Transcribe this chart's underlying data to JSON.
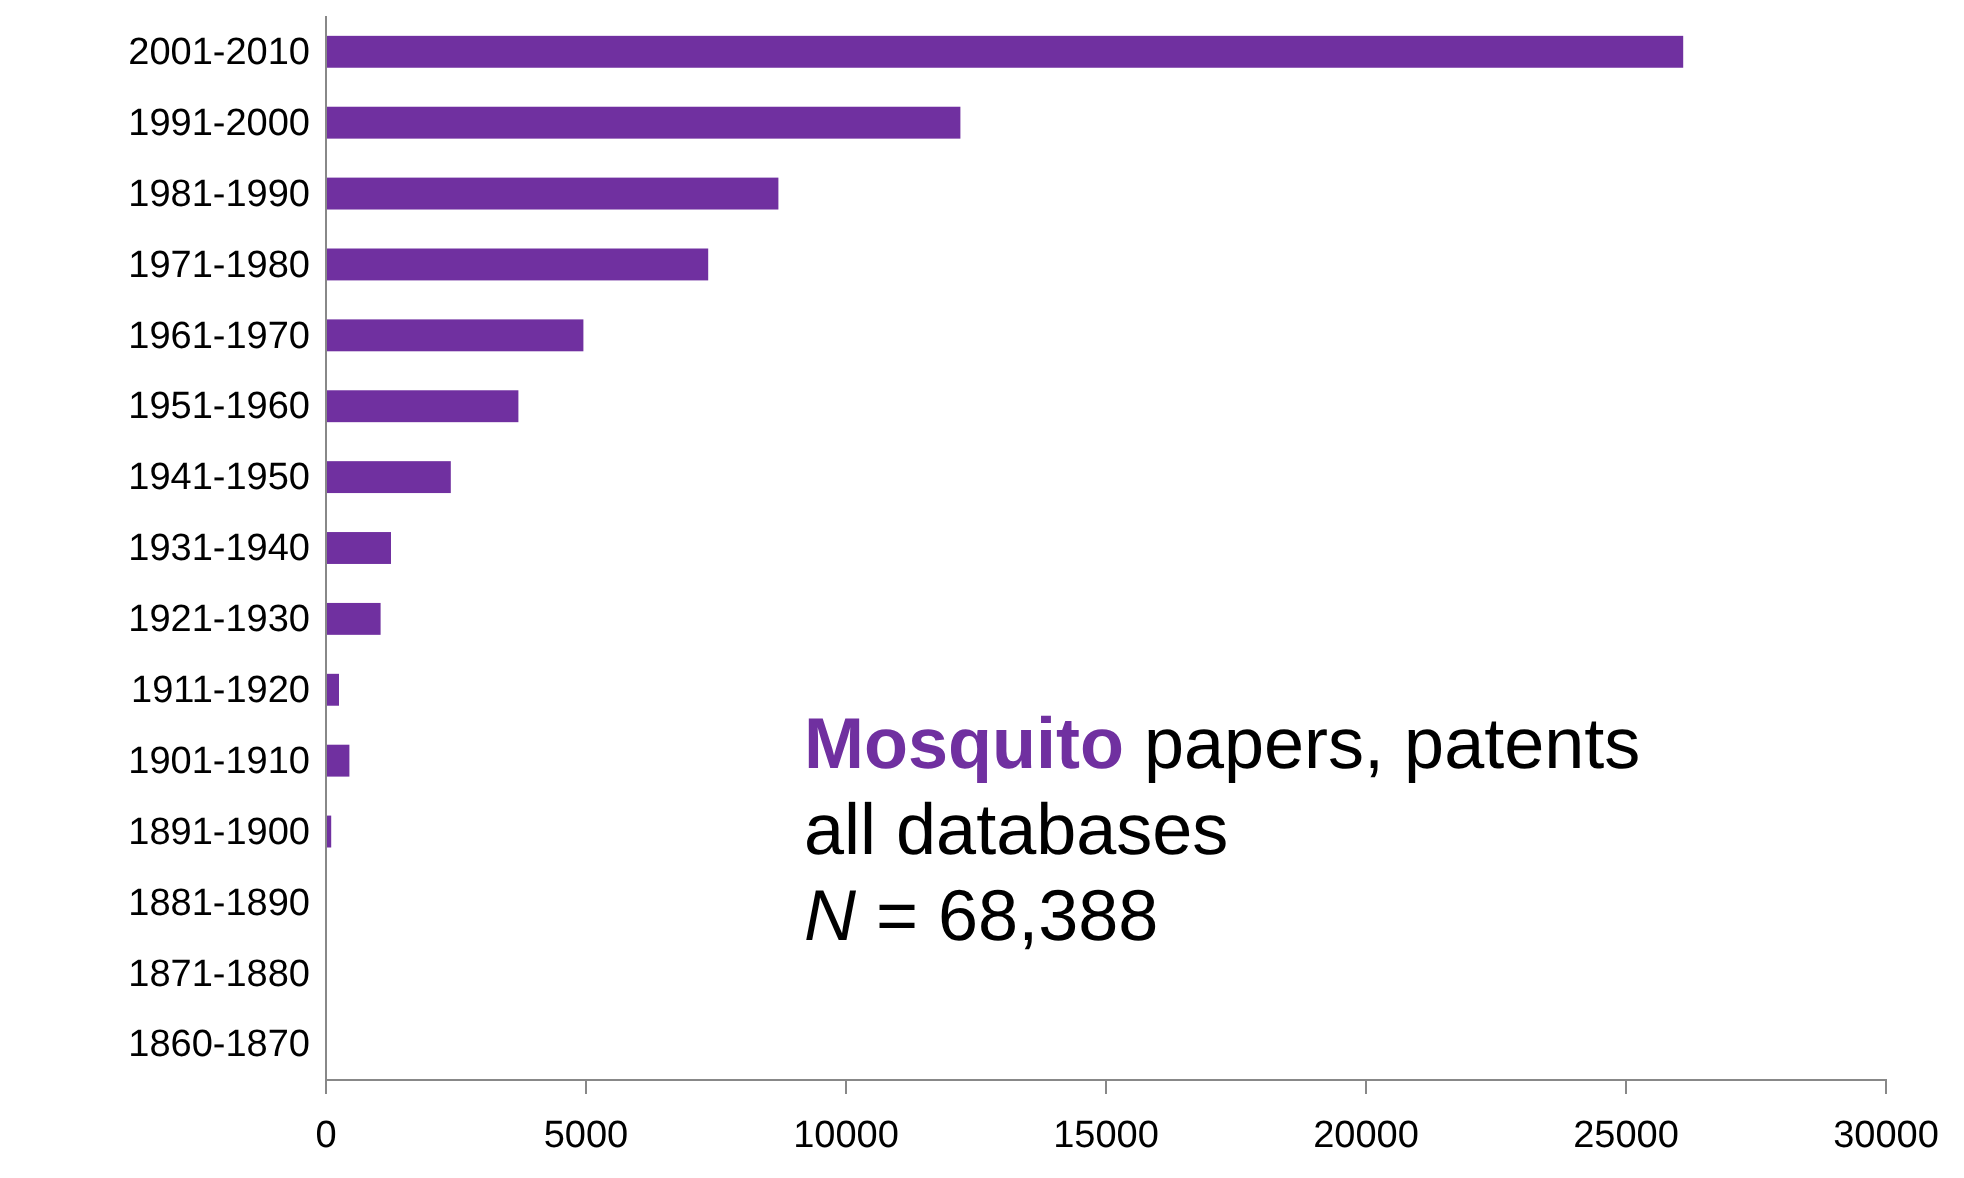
{
  "chart_data": {
    "type": "bar",
    "orientation": "horizontal",
    "categories": [
      "2001-2010",
      "1991-2000",
      "1981-1990",
      "1971-1980",
      "1961-1970",
      "1951-1960",
      "1941-1950",
      "1931-1940",
      "1921-1930",
      "1911-1920",
      "1901-1910",
      "1891-1900",
      "1881-1890",
      "1871-1880",
      "1860-1870"
    ],
    "values": [
      26100,
      12200,
      8700,
      7350,
      4950,
      3700,
      2400,
      1250,
      1050,
      250,
      450,
      100,
      0,
      0,
      0
    ],
    "color": "#7030a0",
    "xlim": [
      0,
      30000
    ],
    "xticks": [
      0,
      5000,
      10000,
      15000,
      20000,
      25000,
      30000
    ],
    "grid": false,
    "annotations": [
      "Mosquito papers, patents",
      "all databases",
      "N = 68,388"
    ]
  }
}
